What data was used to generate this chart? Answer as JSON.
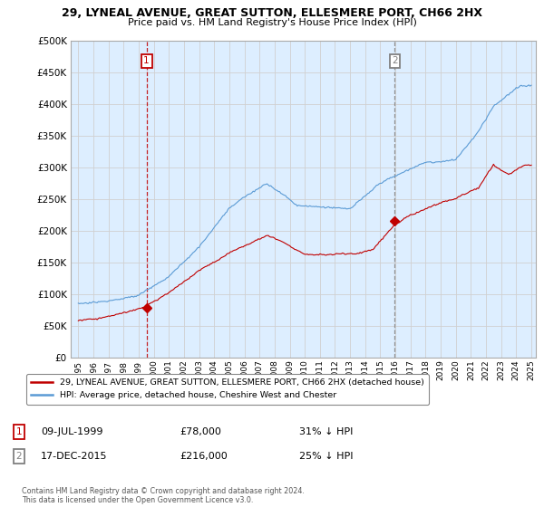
{
  "title": "29, LYNEAL AVENUE, GREAT SUTTON, ELLESMERE PORT, CH66 2HX",
  "subtitle": "Price paid vs. HM Land Registry's House Price Index (HPI)",
  "sale1_date": "09-JUL-1999",
  "sale1_price": 78000,
  "sale1_label": "31% ↓ HPI",
  "sale1_x": 1999.52,
  "sale2_date": "17-DEC-2015",
  "sale2_price": 216000,
  "sale2_label": "25% ↓ HPI",
  "sale2_x": 2015.96,
  "legend_line1": "29, LYNEAL AVENUE, GREAT SUTTON, ELLESMERE PORT, CH66 2HX (detached house)",
  "legend_line2": "HPI: Average price, detached house, Cheshire West and Chester",
  "footnote": "Contains HM Land Registry data © Crown copyright and database right 2024.\nThis data is licensed under the Open Government Licence v3.0.",
  "hpi_color": "#5b9bd5",
  "price_color": "#c00000",
  "vline1_color": "#c00000",
  "vline2_color": "#808080",
  "grid_color": "#d0d0d0",
  "chart_bg": "#ddeeff",
  "bg_color": "#ffffff",
  "ylim": [
    0,
    500000
  ],
  "xlim": [
    1994.5,
    2025.3
  ],
  "yticks": [
    0,
    50000,
    100000,
    150000,
    200000,
    250000,
    300000,
    350000,
    400000,
    450000,
    500000
  ],
  "xtick_years": [
    1995,
    1996,
    1997,
    1998,
    1999,
    2000,
    2001,
    2002,
    2003,
    2004,
    2005,
    2006,
    2007,
    2008,
    2009,
    2010,
    2011,
    2012,
    2013,
    2014,
    2015,
    2016,
    2017,
    2018,
    2019,
    2020,
    2021,
    2022,
    2023,
    2024,
    2025
  ]
}
